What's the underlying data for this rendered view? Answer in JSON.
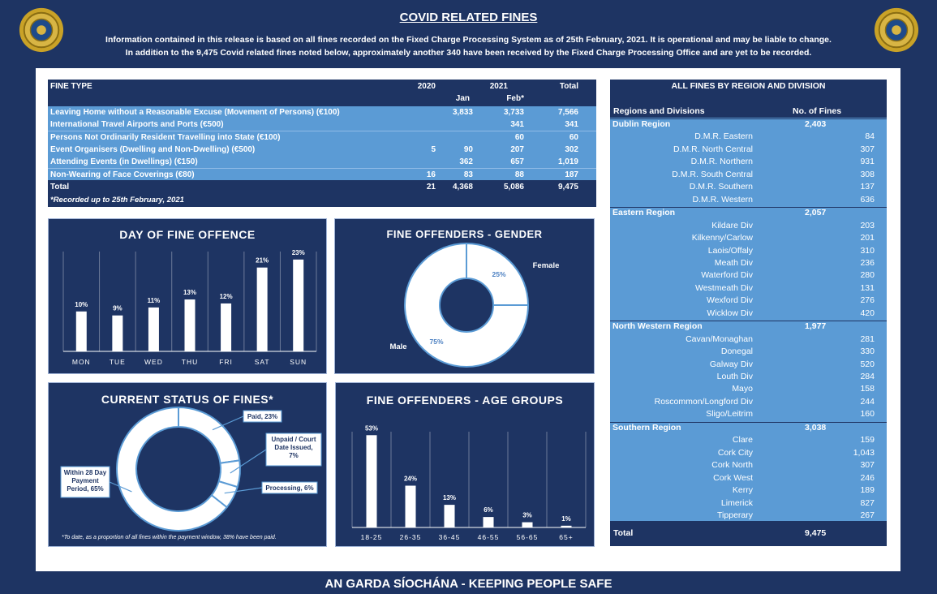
{
  "header": {
    "title": "COVID RELATED FINES",
    "line1": "Information contained in this release is based on all fines recorded on the Fixed Charge Processing System as of 25th February, 2021.  It is operational and may be liable to change.",
    "line2": "In addition to the 9,475 Covid related fines noted below, approximately another 340 have been received by the Fixed Charge Processing Office and are yet to be recorded."
  },
  "footer": "AN GARDA SÍOCHÁNA - KEEPING PEOPLE SAFE",
  "colors": {
    "navy": "#1e3463",
    "highlight": "#5b9bd5",
    "white": "#ffffff"
  },
  "fine_table": {
    "headers": {
      "type": "FINE TYPE",
      "y2020": "2020",
      "y2021": "2021",
      "total": "Total",
      "jan": "Jan",
      "feb": "Feb*"
    },
    "rows": [
      {
        "type": "Leaving Home without a Reasonable Excuse (Movement of Persons) (€100)",
        "y2020": "",
        "jan": "3,833",
        "feb": "3,733",
        "total": "7,566"
      },
      {
        "type": "International Travel Airports and Ports (€500)",
        "y2020": "",
        "jan": "",
        "feb": "341",
        "total": "341"
      },
      {
        "type": "Persons Not Ordinarily Resident Travelling into State (€100)",
        "y2020": "",
        "jan": "",
        "feb": "60",
        "total": "60"
      },
      {
        "type": "Event Organisers (Dwelling and Non-Dwelling) (€500)",
        "y2020": "5",
        "jan": "90",
        "feb": "207",
        "total": "302"
      },
      {
        "type": "Attending Events (in Dwellings) (€150)",
        "y2020": "",
        "jan": "362",
        "feb": "657",
        "total": "1,019"
      },
      {
        "type": "Non-Wearing of Face Coverings (€80)",
        "y2020": "16",
        "jan": "83",
        "feb": "88",
        "total": "187"
      }
    ],
    "total_row": {
      "type": "Total",
      "y2020": "21",
      "jan": "4,368",
      "feb": "5,086",
      "total": "9,475"
    },
    "footnote": "*Recorded up to 25th February, 2021"
  },
  "region_table": {
    "title": "ALL FINES BY REGION AND DIVISION",
    "col1": "Regions and Divisions",
    "col2": "No. of Fines",
    "regions": [
      {
        "name": "Dublin Region",
        "total": "2,403",
        "divisions": [
          {
            "name": "D.M.R. Eastern",
            "value": "84"
          },
          {
            "name": "D.M.R. North Central",
            "value": "307"
          },
          {
            "name": "D.M.R. Northern",
            "value": "931"
          },
          {
            "name": "D.M.R. South Central",
            "value": "308"
          },
          {
            "name": "D.M.R. Southern",
            "value": "137"
          },
          {
            "name": "D.M.R. Western",
            "value": "636"
          }
        ]
      },
      {
        "name": "Eastern Region",
        "total": "2,057",
        "divisions": [
          {
            "name": "Kildare Div",
            "value": "203"
          },
          {
            "name": "Kilkenny/Carlow",
            "value": "201"
          },
          {
            "name": "Laois/Offaly",
            "value": "310"
          },
          {
            "name": "Meath Div",
            "value": "236"
          },
          {
            "name": "Waterford Div",
            "value": "280"
          },
          {
            "name": "Westmeath Div",
            "value": "131"
          },
          {
            "name": "Wexford Div",
            "value": "276"
          },
          {
            "name": "Wicklow Div",
            "value": "420"
          }
        ]
      },
      {
        "name": "North Western Region",
        "total": "1,977",
        "divisions": [
          {
            "name": "Cavan/Monaghan",
            "value": "281"
          },
          {
            "name": "Donegal",
            "value": "330"
          },
          {
            "name": "Galway Div",
            "value": "520"
          },
          {
            "name": "Louth Div",
            "value": "284"
          },
          {
            "name": "Mayo",
            "value": "158"
          },
          {
            "name": "Roscommon/Longford Div",
            "value": "244"
          },
          {
            "name": "Sligo/Leitrim",
            "value": "160"
          }
        ]
      },
      {
        "name": "Southern Region",
        "total": "3,038",
        "divisions": [
          {
            "name": "Clare",
            "value": "159"
          },
          {
            "name": "Cork City",
            "value": "1,043"
          },
          {
            "name": "Cork North",
            "value": "307"
          },
          {
            "name": "Cork West",
            "value": "246"
          },
          {
            "name": "Kerry",
            "value": "189"
          },
          {
            "name": "Limerick",
            "value": "827"
          },
          {
            "name": "Tipperary",
            "value": "267"
          }
        ]
      }
    ],
    "total_label": "Total",
    "total_value": "9,475"
  },
  "chart_data": [
    {
      "type": "bar",
      "title": "DAY OF FINE OFFENCE",
      "categories": [
        "MON",
        "TUE",
        "WED",
        "THU",
        "FRI",
        "SAT",
        "SUN"
      ],
      "values": [
        10,
        9,
        11,
        13,
        12,
        21,
        23
      ],
      "labels": [
        "10%",
        "9%",
        "11%",
        "13%",
        "12%",
        "21%",
        "23%"
      ],
      "ylim": [
        0,
        25
      ]
    },
    {
      "type": "pie",
      "title": "FINE OFFENDERS - GENDER",
      "categories": [
        "Female",
        "Male"
      ],
      "values": [
        25,
        75
      ],
      "labels": [
        "25%",
        "75%"
      ]
    },
    {
      "type": "pie",
      "title": "CURRENT STATUS OF FINES*",
      "categories": [
        "Paid, 23%",
        "Unpaid / Court Date Issued, 7%",
        "Processing, 6%",
        "Within 28 Day Payment Period, 65%"
      ],
      "values": [
        23,
        7,
        6,
        65
      ],
      "footnote": "*To date, as a proportion of all fines within the payment window, 38% have been paid."
    },
    {
      "type": "bar",
      "title": "FINE OFFENDERS - AGE GROUPS",
      "categories": [
        "18-25",
        "26-35",
        "36-45",
        "46-55",
        "56-65",
        "65+"
      ],
      "values": [
        53,
        24,
        13,
        6,
        3,
        1
      ],
      "labels": [
        "53%",
        "24%",
        "13%",
        "6%",
        "3%",
        "1%"
      ],
      "ylim": [
        0,
        55
      ]
    }
  ]
}
